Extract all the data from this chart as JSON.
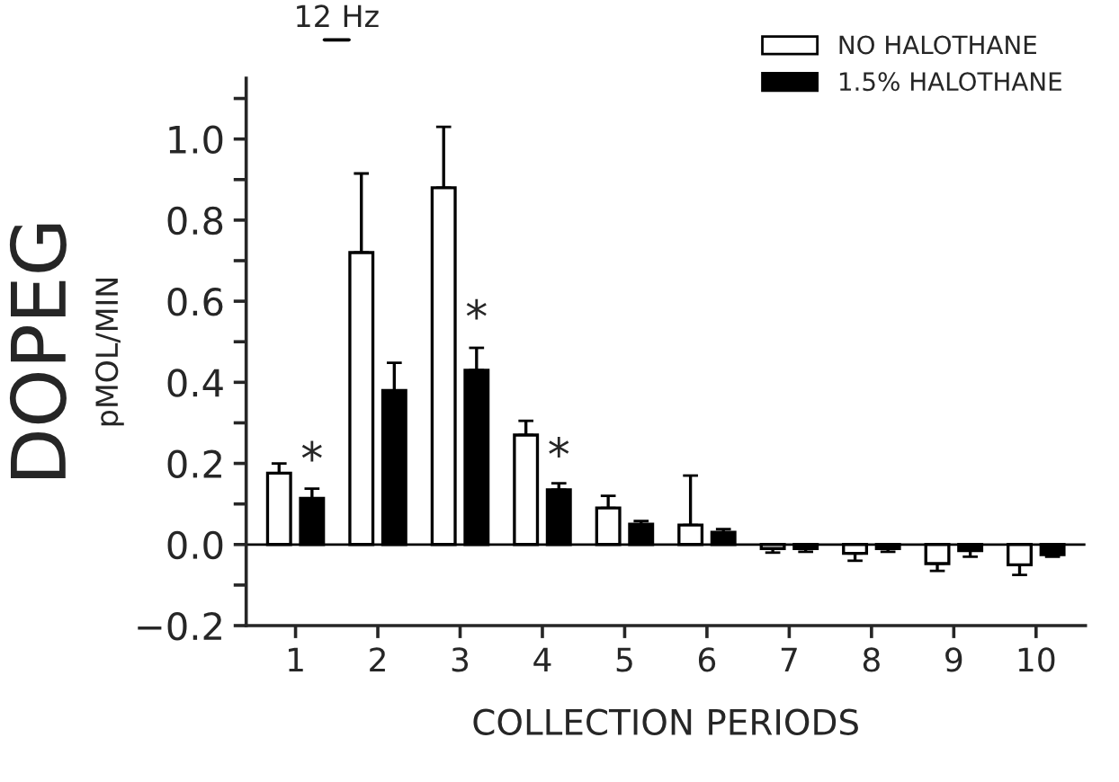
{
  "chart_data": {
    "type": "bar",
    "xlabel": "COLLECTION PERIODS",
    "ylabel": "pMOL/MIN",
    "categories": [
      "1",
      "2",
      "3",
      "4",
      "5",
      "6",
      "7",
      "8",
      "9",
      "10"
    ],
    "series": [
      {
        "name": "NO HALOTHANE",
        "color": "#ffffff",
        "values": [
          0.176,
          0.72,
          0.88,
          0.27,
          0.09,
          0.048,
          -0.01,
          -0.022,
          -0.047,
          -0.05
        ],
        "errors": [
          [
            0.176,
            0.2
          ],
          [
            0.72,
            0.915
          ],
          [
            0.88,
            1.03
          ],
          [
            0.27,
            0.305
          ],
          [
            0.09,
            0.12
          ],
          [
            0.048,
            0.17
          ],
          [
            -0.02,
            -0.01
          ],
          [
            -0.04,
            -0.022
          ],
          [
            -0.065,
            -0.047
          ],
          [
            -0.075,
            -0.05
          ]
        ]
      },
      {
        "name": "1.5% HALOTHANE",
        "color": "#000000",
        "values": [
          0.114,
          0.38,
          0.43,
          0.135,
          0.05,
          0.03,
          -0.01,
          -0.01,
          -0.015,
          -0.025
        ],
        "errors": [
          [
            0.114,
            0.138
          ],
          [
            0.38,
            0.448
          ],
          [
            0.43,
            0.485
          ],
          [
            0.135,
            0.151
          ],
          [
            0.05,
            0.058
          ],
          [
            0.03,
            0.038
          ],
          [
            -0.018,
            -0.01
          ],
          [
            -0.018,
            -0.01
          ],
          [
            -0.03,
            -0.015
          ],
          [
            -0.03,
            -0.025
          ]
        ]
      }
    ],
    "ylim": [
      -0.2,
      1.15
    ],
    "yticks": [
      {
        "value": -0.2,
        "label": "−0.2"
      },
      {
        "value": -0.1,
        "label": null
      },
      {
        "value": 0,
        "label": "0.0"
      },
      {
        "value": 0.1,
        "label": null
      },
      {
        "value": 0.2,
        "label": "0.2"
      },
      {
        "value": 0.3,
        "label": null
      },
      {
        "value": 0.4,
        "label": "0.4"
      },
      {
        "value": 0.5,
        "label": null
      },
      {
        "value": 0.6,
        "label": "0.6"
      },
      {
        "value": 0.7,
        "label": null
      },
      {
        "value": 0.8,
        "label": "0.8"
      },
      {
        "value": 0.9,
        "label": null
      },
      {
        "value": 1.0,
        "label": "1.0"
      },
      {
        "value": 1.1,
        "label": null
      }
    ],
    "ref_lines": [
      {
        "axis": "y",
        "value": 0,
        "color": "#000000"
      }
    ],
    "annotations": [
      "DOPEG",
      "12 Hz",
      {
        "text": "*",
        "x": "1",
        "y": 0.15
      },
      {
        "text": "*",
        "x": "3",
        "y": 0.5
      },
      {
        "text": "*",
        "x": "4",
        "y": 0.16
      }
    ],
    "legend": "top right",
    "grid": false
  }
}
